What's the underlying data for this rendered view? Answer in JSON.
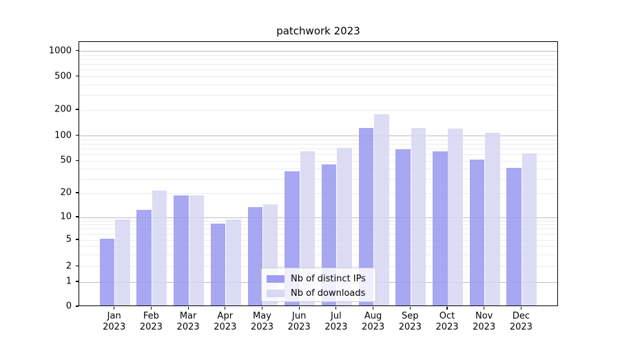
{
  "figure": {
    "title": "patchwork 2023"
  },
  "chart_data": {
    "type": "bar",
    "title": "patchwork 2023",
    "categories": [
      "Jan 2023",
      "Feb 2023",
      "Mar 2023",
      "Apr 2023",
      "May 2023",
      "Jun 2023",
      "Jul 2023",
      "Aug 2023",
      "Sep 2023",
      "Oct 2023",
      "Nov 2023",
      "Dec 2023"
    ],
    "month_labels": [
      "Jan",
      "Feb",
      "Mar",
      "Apr",
      "May",
      "Jun",
      "Jul",
      "Aug",
      "Sep",
      "Oct",
      "Nov",
      "Dec"
    ],
    "year_label": "2023",
    "series": [
      {
        "name": "Nb of distinct IPs",
        "color": "#9898f0",
        "values": [
          5,
          12,
          18,
          8,
          13,
          36,
          44,
          120,
          67,
          63,
          50,
          40
        ]
      },
      {
        "name": "Nb of downloads",
        "color": "#d6d6f3",
        "values": [
          9,
          21,
          18,
          9,
          14,
          63,
          69,
          172,
          120,
          116,
          105,
          60
        ]
      }
    ],
    "xlabel": "",
    "ylabel": "",
    "y_axis": {
      "scale": "symlog",
      "tick_values": [
        0,
        1,
        2,
        5,
        10,
        20,
        50,
        100,
        200,
        500,
        1000
      ],
      "tick_labels": [
        "0",
        "1",
        "2",
        "5",
        "10",
        "20",
        "50",
        "100",
        "200",
        "500",
        "1000"
      ],
      "major_grid_values": [
        1,
        10,
        100,
        1000
      ],
      "minor_grid_values": [
        2,
        3,
        4,
        5,
        6,
        7,
        8,
        9,
        20,
        30,
        40,
        50,
        60,
        70,
        80,
        90,
        200,
        300,
        400,
        500,
        600,
        700,
        800,
        900
      ],
      "ylim": [
        0,
        1400
      ]
    },
    "grid": true,
    "legend_position": "lower center",
    "colors": {
      "bar_distinct_ips": "#9898f0",
      "bar_downloads": "#d6d6f3",
      "major_grid": "#bdbdbd",
      "minor_grid": "#ececec",
      "axis": "#000000"
    }
  }
}
